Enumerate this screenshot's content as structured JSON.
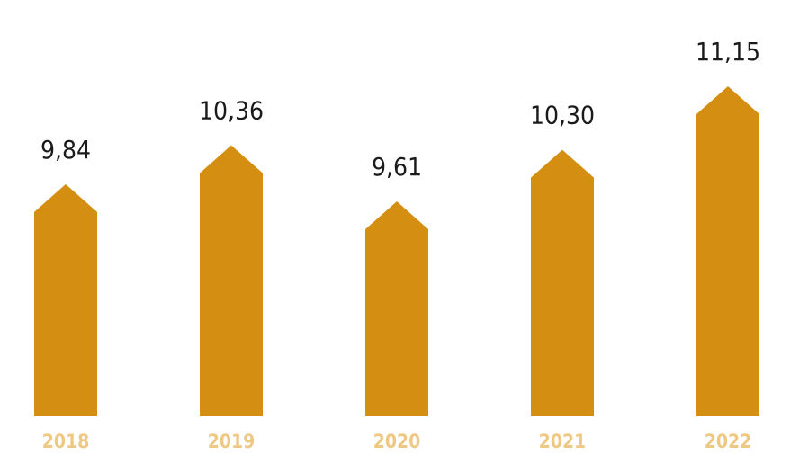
{
  "chart_data": {
    "type": "bar",
    "categories": [
      "2018",
      "2019",
      "2020",
      "2021",
      "2022"
    ],
    "values": [
      9.84,
      10.36,
      9.61,
      10.3,
      11.15
    ],
    "value_labels": [
      "9,84",
      "10,36",
      "9,61",
      "10,30",
      "11,15"
    ],
    "bar_shape": "arrow-up",
    "title": "",
    "xlabel": "",
    "ylabel": "",
    "grid": false,
    "legend": "none"
  },
  "colors": {
    "bar": "#d48f12",
    "value_label": "#1a1a1a",
    "tick_label": "#efc983",
    "background": "#ffffff"
  }
}
